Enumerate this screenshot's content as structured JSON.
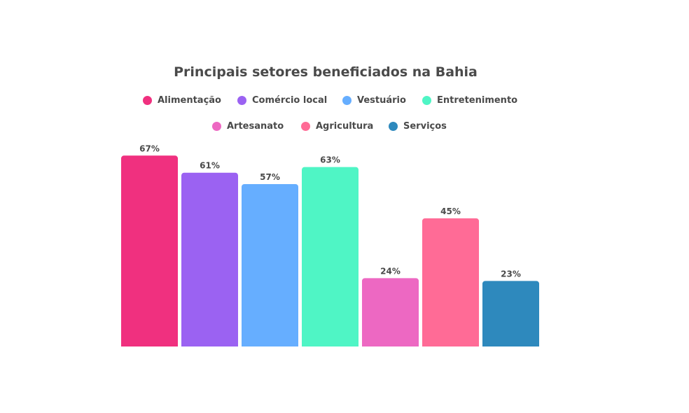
{
  "chart_data": {
    "type": "bar",
    "title": "Principais setores beneficiados na Bahia",
    "categories": [
      "Alimentação",
      "Comércio local",
      "Vestuário",
      "Entretenimento",
      "Artesanato",
      "Agricultura",
      "Serviços"
    ],
    "values": [
      67,
      61,
      57,
      63,
      24,
      45,
      23
    ],
    "value_labels": [
      "67%",
      "61%",
      "57%",
      "63%",
      "24%",
      "45%",
      "23%"
    ],
    "unit": "%",
    "colors": [
      "#f0307f",
      "#9b62f2",
      "#66aeff",
      "#4ff5c5",
      "#ed68c2",
      "#ff6b96",
      "#2e89bd"
    ],
    "legend": {
      "position": "top",
      "rows": [
        [
          "Alimentação",
          "Comércio local",
          "Vestuário",
          "Entretenimento"
        ],
        [
          "Artesanato",
          "Agricultura",
          "Serviços"
        ]
      ]
    },
    "grid": false,
    "axes_visible": false
  }
}
